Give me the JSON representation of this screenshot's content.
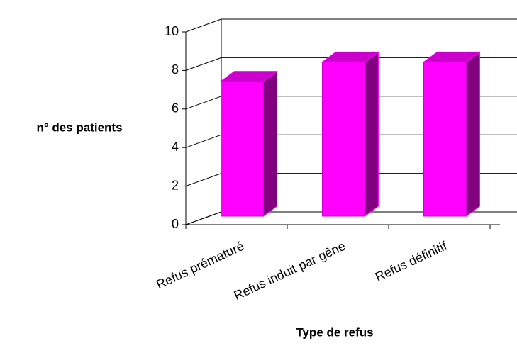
{
  "chart_data": {
    "type": "bar3d",
    "x_label": "Type de refus",
    "y_label": "n° des patients",
    "categories": [
      "Refus prématuré",
      "Refus induit par gêne",
      "Refus définitif"
    ],
    "values": [
      7,
      8,
      8
    ],
    "color": "#ff00ff",
    "ylim": [
      0,
      10
    ],
    "yticks": [
      0,
      2,
      4,
      6,
      8,
      10
    ],
    "grid": true
  }
}
